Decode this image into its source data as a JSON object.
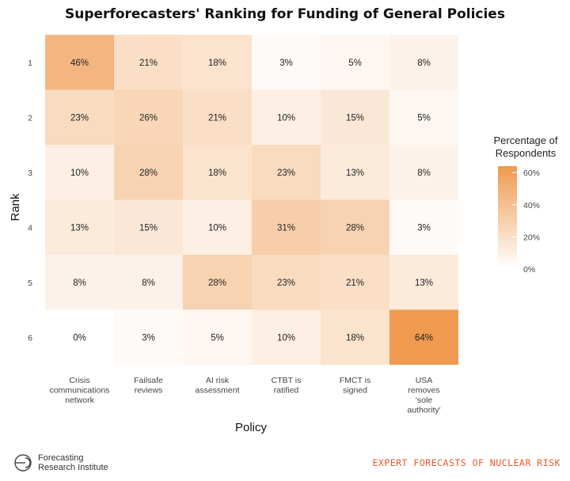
{
  "chart_data": {
    "type": "heatmap",
    "title": "Superforecasters' Ranking for Funding of General Policies",
    "xlabel": "Policy",
    "ylabel": "Rank",
    "x_categories": [
      [
        "Crisis",
        "communications",
        "network"
      ],
      [
        "Failsafe",
        "reviews"
      ],
      [
        "AI risk",
        "assessment"
      ],
      [
        "CTBT is",
        "ratified"
      ],
      [
        "FMCT is",
        "signed"
      ],
      [
        "USA",
        "removes",
        "'sole",
        "authority'"
      ]
    ],
    "y_categories": [
      "1",
      "2",
      "3",
      "4",
      "5",
      "6"
    ],
    "values": [
      [
        46,
        21,
        18,
        3,
        5,
        8
      ],
      [
        23,
        26,
        21,
        10,
        15,
        5
      ],
      [
        10,
        28,
        18,
        23,
        13,
        8
      ],
      [
        13,
        15,
        10,
        31,
        28,
        3
      ],
      [
        8,
        8,
        28,
        23,
        21,
        13
      ],
      [
        0,
        3,
        5,
        10,
        18,
        64
      ]
    ],
    "value_suffix": "%",
    "color_scale": {
      "low": "#ffffff",
      "high": "#ef9a4e",
      "min": 0,
      "max": 64
    },
    "legend": {
      "title": [
        "Percentage of",
        "Respondents"
      ],
      "ticks": [
        "0%",
        "20%",
        "40%",
        "60%"
      ],
      "tick_values": [
        0,
        20,
        40,
        60
      ],
      "placement": "right"
    }
  },
  "footer": {
    "logo_line1": "Forecasting",
    "logo_line2": "Research Institute",
    "logo_icon": "fri-logo-icon",
    "tagline": "EXPERT FORECASTS OF NUCLEAR RISK",
    "tagline_color": "#e8592a"
  }
}
